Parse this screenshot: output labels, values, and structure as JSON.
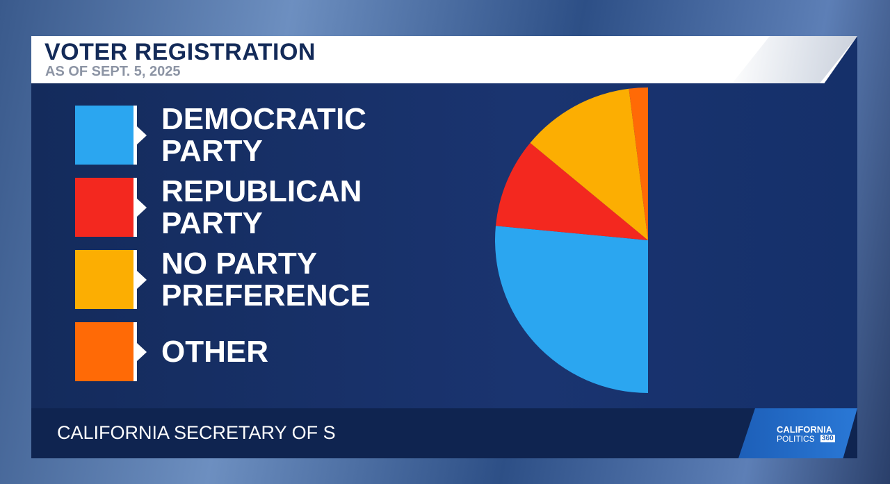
{
  "chart_data": {
    "type": "pie",
    "title": "VOTER REGISTRATION",
    "subtitle": "AS OF SEPT. 5, 2025",
    "categories": [
      "DEMOCRATIC PARTY",
      "REPUBLICAN PARTY",
      "NO PARTY PREFERENCE",
      "OTHER"
    ],
    "values": [
      53,
      19,
      24,
      4
    ],
    "colors": [
      "#2ba6f0",
      "#f3281f",
      "#fcae02",
      "#ff6a06"
    ],
    "sweep": 180,
    "source": "CALIFORNIA SECRETARY OF S"
  },
  "logo": {
    "line1": "CALIFORNIA",
    "line2": "POLITICS",
    "badge": "360"
  }
}
